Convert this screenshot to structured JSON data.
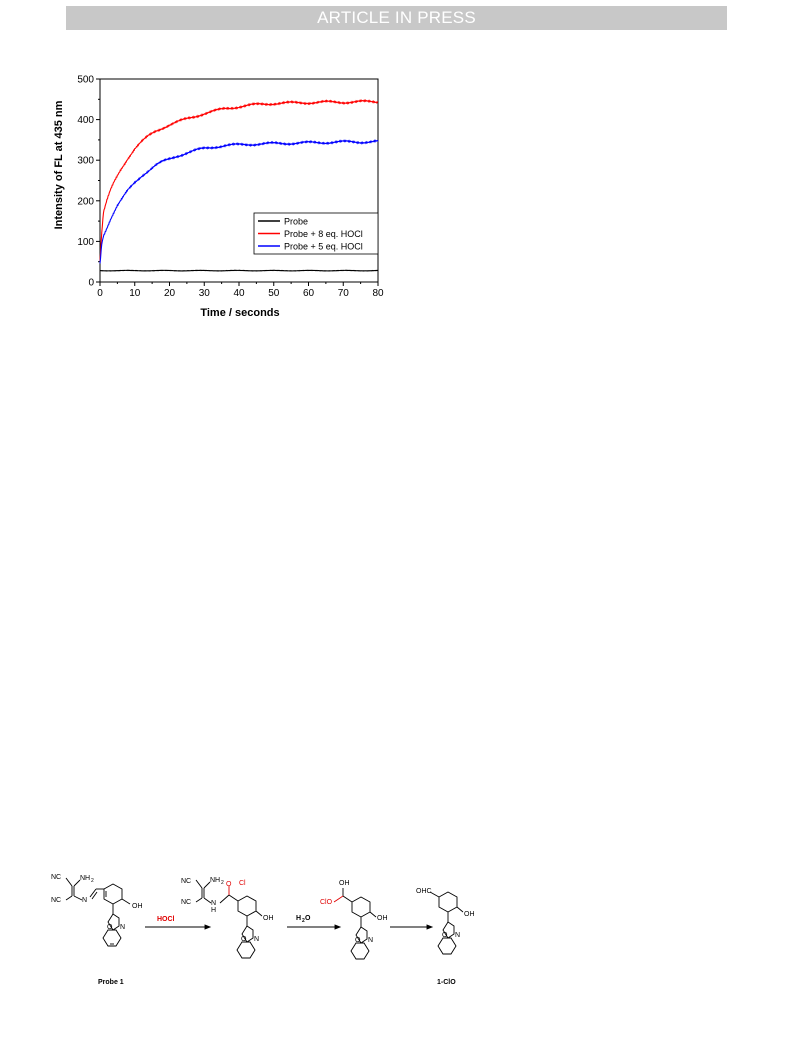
{
  "header": {
    "banner": "ARTICLE IN PRESS"
  },
  "chart_data": {
    "type": "line",
    "xlabel": "Time / seconds",
    "ylabel": "Intensity of FL at 435 nm",
    "xlim": [
      0,
      80
    ],
    "ylim": [
      0,
      500
    ],
    "x_ticks": [
      "0",
      "10",
      "20",
      "30",
      "40",
      "50",
      "60",
      "70",
      "80"
    ],
    "y_ticks": [
      "0",
      "100",
      "200",
      "300",
      "400",
      "500"
    ],
    "grid": false,
    "legend_position": "bottom-right",
    "x": [
      0,
      0.5,
      1,
      2,
      3,
      4,
      5,
      6,
      8,
      10,
      12,
      14,
      16,
      18,
      20,
      22,
      25,
      28,
      30,
      33,
      36,
      40,
      45,
      50,
      55,
      60,
      65,
      70,
      75,
      80
    ],
    "series": [
      {
        "name": "Probe",
        "color": "#000000",
        "values": [
          28,
          28,
          28,
          28,
          28,
          28,
          28,
          28,
          28,
          28,
          28,
          28,
          28,
          28,
          28,
          28,
          28,
          28,
          28,
          28,
          28,
          28,
          28,
          28,
          28,
          28,
          28,
          28,
          28,
          28
        ]
      },
      {
        "name": "Probe + 8 eq. HOCl",
        "color": "#ff0000",
        "values": [
          50,
          120,
          170,
          200,
          225,
          245,
          262,
          278,
          305,
          328,
          345,
          360,
          372,
          380,
          387,
          393,
          402,
          410,
          415,
          421,
          427,
          432,
          437,
          440,
          441,
          442,
          443,
          443,
          444,
          444
        ]
      },
      {
        "name": "Probe + 5 eq. HOCl",
        "color": "#0000ff",
        "values": [
          45,
          95,
          115,
          135,
          155,
          172,
          188,
          200,
          225,
          245,
          262,
          275,
          287,
          296,
          303,
          310,
          318,
          325,
          329,
          333,
          336,
          338,
          340,
          341,
          342,
          343,
          344,
          345,
          345,
          346
        ]
      }
    ]
  },
  "scheme": {
    "probe1": {
      "nc_top": "NC",
      "nh2": "NH",
      "sub2": "2",
      "nc_bottom": "NC",
      "n": "N",
      "oh": "OH",
      "o": "O",
      "n_ring": "N",
      "caption": "Probe 1"
    },
    "arrow1_label": "HOCl",
    "intermediate1": {
      "nc_top": "NC",
      "nh2": "NH",
      "sub2": "2",
      "nc_bottom": "NC",
      "o_cl": "O",
      "cl": "Cl",
      "n": "N",
      "h": "H",
      "oh": "OH",
      "o": "O",
      "n_ring": "N"
    },
    "arrow2_label": "H",
    "arrow2_sub": "2",
    "arrow2_o": "O",
    "intermediate2": {
      "oh_top": "OH",
      "clo": "ClO",
      "oh": "OH",
      "o": "O",
      "n_ring": "N"
    },
    "product": {
      "ohc": "OHC",
      "oh": "OH",
      "o": "O",
      "n_ring": "N",
      "caption": "1-ClO"
    }
  }
}
